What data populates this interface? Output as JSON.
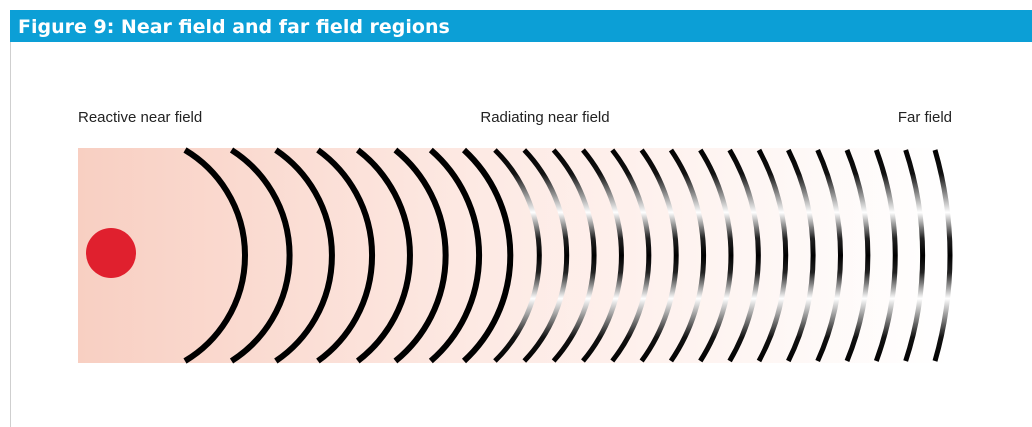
{
  "header": {
    "title": "Figure 9: Near field and far field regions"
  },
  "regions": [
    "Reactive near field",
    "Radiating near field",
    "Far field"
  ]
}
